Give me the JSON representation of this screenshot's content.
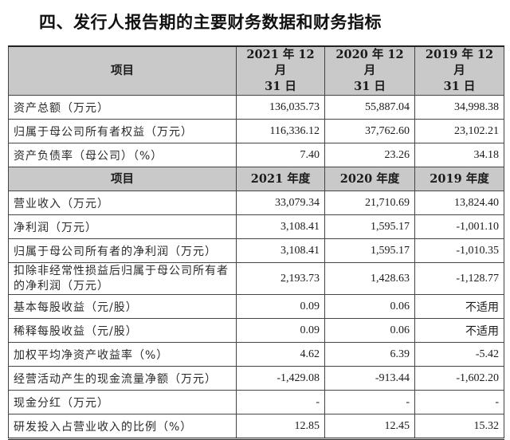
{
  "title": "四、发行人报告期的主要财务数据和财务指标",
  "section1": {
    "headers": [
      "项目",
      "2021 年 12 月\n31 日",
      "2020 年 12 月\n31 日",
      "2019 年 12 月\n31 日"
    ],
    "header_lines": [
      {
        "l1": "项目",
        "l2": ""
      },
      {
        "l1": "2021 年 12 月",
        "l2": "31 日"
      },
      {
        "l1": "2020 年 12 月",
        "l2": "31 日"
      },
      {
        "l1": "2019 年 12 月",
        "l2": "31 日"
      }
    ],
    "rows": [
      {
        "label": "资产总额（万元）",
        "v2021": "136,035.73",
        "v2020": "55,887.04",
        "v2019": "34,998.38"
      },
      {
        "label": "归属于母公司所有者权益（万元）",
        "v2021": "116,336.12",
        "v2020": "37,762.60",
        "v2019": "23,102.21"
      },
      {
        "label": "资产负债率（母公司）（%）",
        "v2021": "7.40",
        "v2020": "23.26",
        "v2019": "34.18"
      }
    ]
  },
  "section2": {
    "headers": [
      "项目",
      "2021 年度",
      "2020 年度",
      "2019 年度"
    ],
    "rows": [
      {
        "label": "营业收入（万元）",
        "v2021": "33,079.34",
        "v2020": "21,710.69",
        "v2019": "13,824.40"
      },
      {
        "label": "净利润（万元）",
        "v2021": "3,108.41",
        "v2020": "1,595.17",
        "v2019": "-1,001.10"
      },
      {
        "label": "归属于母公司所有者的净利润（万元）",
        "v2021": "3,108.41",
        "v2020": "1,595.17",
        "v2019": "-1,010.35"
      },
      {
        "label": "扣除非经常性损益后归属于母公司所有者的净利润（万元）",
        "v2021": "2,193.73",
        "v2020": "1,428.63",
        "v2019": "-1,128.77"
      },
      {
        "label": "基本每股收益（元/股）",
        "v2021": "0.09",
        "v2020": "0.06",
        "v2019": "不适用"
      },
      {
        "label": "稀释每股收益（元/股）",
        "v2021": "0.09",
        "v2020": "0.06",
        "v2019": "不适用"
      },
      {
        "label": "加权平均净资产收益率（%）",
        "v2021": "4.62",
        "v2020": "6.39",
        "v2019": "-5.42"
      },
      {
        "label": "经营活动产生的现金流量净额（万元）",
        "v2021": "-1,429.08",
        "v2020": "-913.44",
        "v2019": "-1,602.20"
      },
      {
        "label": "现金分红（万元）",
        "v2021": "-",
        "v2020": "-",
        "v2019": "-"
      },
      {
        "label": "研发投入占营业收入的比例（%）",
        "v2021": "12.85",
        "v2020": "12.45",
        "v2019": "15.32"
      }
    ]
  },
  "colors": {
    "header_bg": "#c9c9c9",
    "border": "#444444",
    "text": "#1a1a1a"
  }
}
